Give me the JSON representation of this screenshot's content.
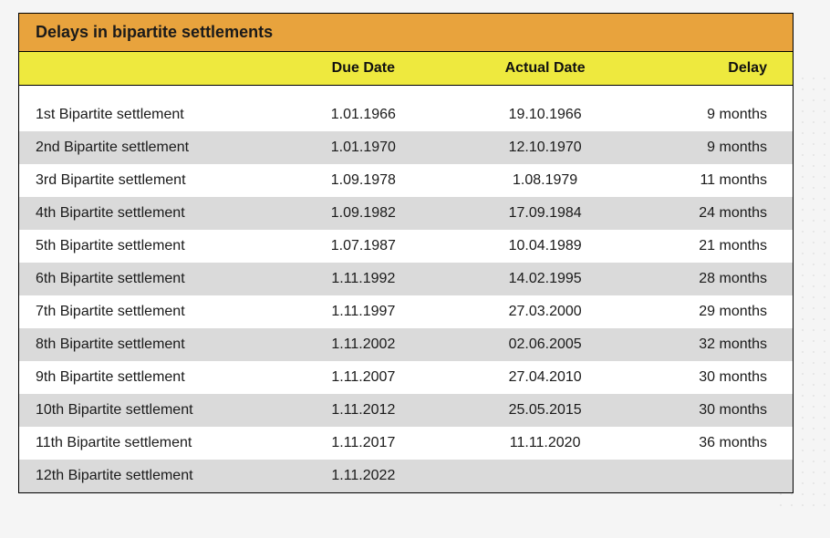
{
  "table": {
    "title": "Delays in bipartite settlements",
    "columns": {
      "name": "",
      "due": "Due Date",
      "actual": "Actual Date",
      "delay": "Delay"
    },
    "title_bg": "#e8a33d",
    "header_bg": "#eee93e",
    "row_even_bg": "#ffffff",
    "row_odd_bg": "#dadada",
    "border_color": "#000000",
    "font_size_title": 18,
    "font_size_header": 16,
    "font_size_body": 16,
    "rows": [
      {
        "name": "1st Bipartite settlement",
        "due": "1.01.1966",
        "actual": "19.10.1966",
        "delay": "9 months"
      },
      {
        "name": "2nd Bipartite settlement",
        "due": "1.01.1970",
        "actual": "12.10.1970",
        "delay": "9 months"
      },
      {
        "name": "3rd Bipartite settlement",
        "due": "1.09.1978",
        "actual": "1.08.1979",
        "delay": "11 months"
      },
      {
        "name": "4th Bipartite settlement",
        "due": "1.09.1982",
        "actual": "17.09.1984",
        "delay": "24 months"
      },
      {
        "name": "5th Bipartite settlement",
        "due": "1.07.1987",
        "actual": "10.04.1989",
        "delay": "21 months"
      },
      {
        "name": "6th Bipartite settlement",
        "due": "1.11.1992",
        "actual": "14.02.1995",
        "delay": "28 months"
      },
      {
        "name": "7th Bipartite settlement",
        "due": "1.11.1997",
        "actual": "27.03.2000",
        "delay": "29 months"
      },
      {
        "name": "8th Bipartite settlement",
        "due": "1.11.2002",
        "actual": "02.06.2005",
        "delay": "32 months"
      },
      {
        "name": "9th Bipartite settlement",
        "due": "1.11.2007",
        "actual": "27.04.2010",
        "delay": "30 months"
      },
      {
        "name": "10th Bipartite settlement",
        "due": "1.11.2012",
        "actual": "25.05.2015",
        "delay": "30 months"
      },
      {
        "name": "11th Bipartite settlement",
        "due": "1.11.2017",
        "actual": "11.11.2020",
        "delay": "36 months"
      },
      {
        "name": "12th Bipartite settlement",
        "due": "1.11.2022",
        "actual": "",
        "delay": ""
      }
    ]
  }
}
